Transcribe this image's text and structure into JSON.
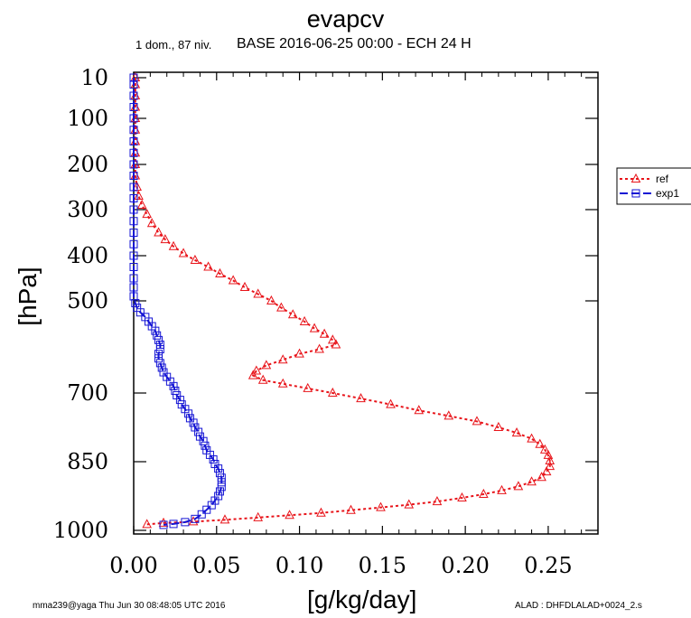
{
  "title": "evapcv",
  "subtitle_left": "1 dom., 87 niv.",
  "subtitle_right": "BASE 2016-06-25 00:00 - ECH 24 H",
  "footer_left": "mma239@yaga Thu Jun 30 08:48:05 UTC 2016",
  "footer_right": "ALAD : DHFDLALAD+0024_2.s",
  "colors": {
    "ref": "#e8141a",
    "exp": "#1414d4"
  },
  "chart_data": {
    "type": "line",
    "title": "evapcv",
    "xlabel": "[g/kg/day]",
    "ylabel": "[hPa]",
    "xlim": [
      0.0,
      0.28
    ],
    "ylim": [
      10,
      1000
    ],
    "y_inverted": true,
    "y_scale": "pressure (decreasing upward)",
    "x_ticks": [
      "0.00",
      "0.05",
      "0.10",
      "0.15",
      "0.20",
      "0.25"
    ],
    "y_ticks": [
      "10",
      "100",
      "200",
      "300",
      "400",
      "500",
      "700",
      "850",
      "1000"
    ],
    "grid": false,
    "legend_position": "right",
    "series": [
      {
        "name": "ref",
        "color": "#e8141a",
        "line_style": "dotted",
        "marker": "triangle",
        "points": [
          [
            0.001,
            10
          ],
          [
            0.001,
            25
          ],
          [
            0.001,
            50
          ],
          [
            0.001,
            75
          ],
          [
            0.001,
            100
          ],
          [
            0.001,
            125
          ],
          [
            0.001,
            150
          ],
          [
            0.001,
            175
          ],
          [
            0.001,
            200
          ],
          [
            0.001,
            225
          ],
          [
            0.002,
            250
          ],
          [
            0.003,
            270
          ],
          [
            0.005,
            290
          ],
          [
            0.008,
            310
          ],
          [
            0.011,
            330
          ],
          [
            0.015,
            350
          ],
          [
            0.019,
            365
          ],
          [
            0.024,
            380
          ],
          [
            0.03,
            395
          ],
          [
            0.037,
            410
          ],
          [
            0.045,
            425
          ],
          [
            0.052,
            440
          ],
          [
            0.06,
            455
          ],
          [
            0.067,
            470
          ],
          [
            0.075,
            485
          ],
          [
            0.083,
            500
          ],
          [
            0.089,
            515
          ],
          [
            0.096,
            530
          ],
          [
            0.103,
            545
          ],
          [
            0.109,
            560
          ],
          [
            0.115,
            572
          ],
          [
            0.12,
            585
          ],
          [
            0.122,
            595
          ],
          [
            0.112,
            605
          ],
          [
            0.1,
            615
          ],
          [
            0.09,
            628
          ],
          [
            0.08,
            640
          ],
          [
            0.074,
            652
          ],
          [
            0.072,
            662
          ],
          [
            0.078,
            672
          ],
          [
            0.09,
            680
          ],
          [
            0.105,
            690
          ],
          [
            0.12,
            700
          ],
          [
            0.137,
            712
          ],
          [
            0.155,
            725
          ],
          [
            0.172,
            738
          ],
          [
            0.19,
            750
          ],
          [
            0.207,
            762
          ],
          [
            0.22,
            775
          ],
          [
            0.231,
            787
          ],
          [
            0.24,
            800
          ],
          [
            0.245,
            812
          ],
          [
            0.248,
            824
          ],
          [
            0.25,
            836
          ],
          [
            0.251,
            848
          ],
          [
            0.251,
            860
          ],
          [
            0.249,
            872
          ],
          [
            0.246,
            884
          ],
          [
            0.24,
            894
          ],
          [
            0.232,
            904
          ],
          [
            0.222,
            913
          ],
          [
            0.211,
            921
          ],
          [
            0.198,
            929
          ],
          [
            0.183,
            937
          ],
          [
            0.166,
            944
          ],
          [
            0.149,
            950
          ],
          [
            0.131,
            956
          ],
          [
            0.113,
            962
          ],
          [
            0.094,
            967
          ],
          [
            0.075,
            972
          ],
          [
            0.055,
            977
          ],
          [
            0.036,
            981
          ],
          [
            0.018,
            984
          ],
          [
            0.008,
            987
          ]
        ]
      },
      {
        "name": "exp1",
        "color": "#1414d4",
        "line_style": "dashed",
        "marker": "square",
        "points": [
          [
            0.0,
            10
          ],
          [
            0.0,
            25
          ],
          [
            0.0,
            50
          ],
          [
            0.0,
            75
          ],
          [
            0.0,
            100
          ],
          [
            0.0,
            125
          ],
          [
            0.0,
            150
          ],
          [
            0.0,
            175
          ],
          [
            0.0,
            200
          ],
          [
            0.0,
            225
          ],
          [
            0.0,
            250
          ],
          [
            0.0,
            275
          ],
          [
            0.0,
            300
          ],
          [
            0.0,
            325
          ],
          [
            0.0,
            350
          ],
          [
            0.0,
            375
          ],
          [
            0.0,
            400
          ],
          [
            0.0,
            425
          ],
          [
            0.0,
            450
          ],
          [
            0.0,
            470
          ],
          [
            0.0,
            490
          ],
          [
            0.001,
            505
          ],
          [
            0.002,
            515
          ],
          [
            0.004,
            525
          ],
          [
            0.007,
            535
          ],
          [
            0.009,
            545
          ],
          [
            0.011,
            555
          ],
          [
            0.013,
            565
          ],
          [
            0.014,
            575
          ],
          [
            0.015,
            585
          ],
          [
            0.016,
            595
          ],
          [
            0.016,
            605
          ],
          [
            0.015,
            615
          ],
          [
            0.015,
            625
          ],
          [
            0.016,
            635
          ],
          [
            0.017,
            645
          ],
          [
            0.018,
            655
          ],
          [
            0.02,
            665
          ],
          [
            0.022,
            675
          ],
          [
            0.024,
            685
          ],
          [
            0.025,
            695
          ],
          [
            0.026,
            705
          ],
          [
            0.028,
            715
          ],
          [
            0.029,
            725
          ],
          [
            0.031,
            735
          ],
          [
            0.033,
            745
          ],
          [
            0.034,
            755
          ],
          [
            0.036,
            765
          ],
          [
            0.037,
            775
          ],
          [
            0.039,
            785
          ],
          [
            0.04,
            795
          ],
          [
            0.042,
            805
          ],
          [
            0.043,
            815
          ],
          [
            0.044,
            825
          ],
          [
            0.046,
            835
          ],
          [
            0.048,
            845
          ],
          [
            0.049,
            855
          ],
          [
            0.051,
            865
          ],
          [
            0.052,
            875
          ],
          [
            0.053,
            885
          ],
          [
            0.053,
            895
          ],
          [
            0.053,
            905
          ],
          [
            0.052,
            915
          ],
          [
            0.051,
            925
          ],
          [
            0.049,
            935
          ],
          [
            0.047,
            945
          ],
          [
            0.044,
            955
          ],
          [
            0.041,
            965
          ],
          [
            0.037,
            975
          ],
          [
            0.031,
            982
          ],
          [
            0.024,
            986
          ],
          [
            0.018,
            988
          ]
        ]
      }
    ]
  }
}
